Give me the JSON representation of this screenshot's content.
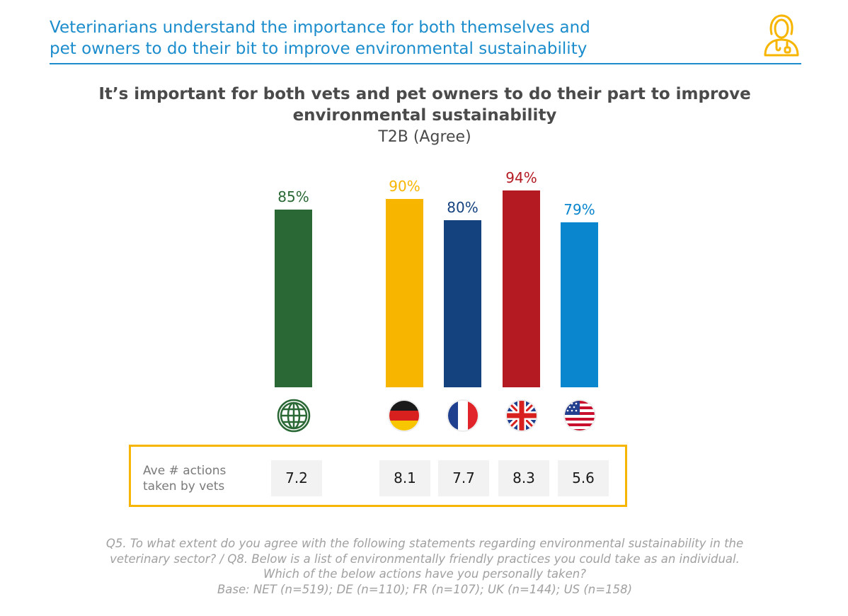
{
  "header": {
    "title_line1": "Veterinarians understand the importance for both themselves and",
    "title_line2": "pet owners to do their bit to improve environmental sustainability",
    "icon": "veterinarian-icon",
    "accent_color": "#1b8ccc"
  },
  "chart_data": {
    "type": "bar",
    "title_line1": "It’s important for both vets and pet owners to do their part to improve",
    "title_line2": "environmental sustainability",
    "subtitle": "T2B (Agree)",
    "categories": [
      "NET",
      "DE",
      "FR",
      "UK",
      "US"
    ],
    "values": [
      85,
      90,
      80,
      94,
      79
    ],
    "value_labels": [
      "85%",
      "90%",
      "80%",
      "94%",
      "79%"
    ],
    "colors": [
      "#2a6835",
      "#f7b500",
      "#14427f",
      "#b31a21",
      "#0a86cf"
    ],
    "category_icons": [
      "globe-icon",
      "germany-flag-icon",
      "france-flag-icon",
      "uk-flag-icon",
      "usa-flag-icon"
    ],
    "ylim": [
      0,
      100
    ],
    "grid": false,
    "legend": "none"
  },
  "actions": {
    "label_line1": "Ave # actions",
    "label_line2": "taken by vets",
    "values": [
      "7.2",
      "8.1",
      "7.7",
      "8.3",
      "5.6"
    ],
    "border_color": "#f7b500"
  },
  "footnote": {
    "line1": "Q5. To what extent do you agree with the following statements regarding environmental sustainability in the",
    "line2": "veterinary sector?  / Q8. Below is a list of environmentally friendly practices you could take as an individual.",
    "line3": "Which of the below actions have you personally taken?",
    "line4": "Base: NET (n=519); DE (n=110); FR (n=107); UK (n=144); US (n=158)"
  }
}
